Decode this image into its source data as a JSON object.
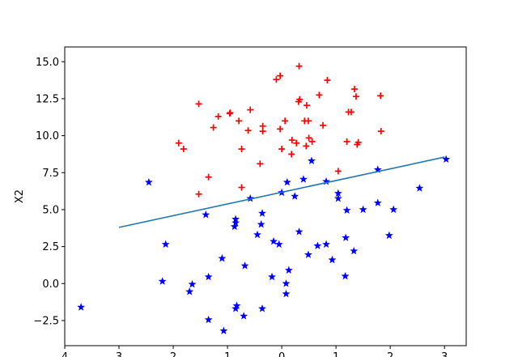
{
  "chart_data": {
    "type": "scatter",
    "title": "",
    "xlabel": "",
    "ylabel": "X2",
    "xlim": [
      -4.0,
      3.4
    ],
    "ylim": [
      -4.2,
      16.0
    ],
    "xticks": [
      -4,
      -3,
      -2,
      -1,
      0,
      1,
      2,
      3
    ],
    "xtick_labels": [
      "4",
      "3",
      "2",
      "1",
      "0",
      "1",
      "2",
      "3"
    ],
    "yticks": [
      -2.5,
      0.0,
      2.5,
      5.0,
      7.5,
      10.0,
      12.5,
      15.0
    ],
    "ytick_labels": [
      "−2.5",
      "0.0",
      "2.5",
      "5.0",
      "7.5",
      "10.0",
      "12.5",
      "15.0"
    ],
    "grid": false,
    "colors": {
      "red_series": "#ff0000",
      "blue_series": "#0000ff",
      "line": "#1f77b4",
      "axes": "#000000"
    },
    "series": [
      {
        "marker": "plus",
        "color": "#ff0000",
        "points": [
          [
            0.32,
            14.7
          ],
          [
            -0.1,
            13.8
          ],
          [
            -0.03,
            14.05
          ],
          [
            0.84,
            13.75
          ],
          [
            1.34,
            13.15
          ],
          [
            1.82,
            12.7
          ],
          [
            1.37,
            12.65
          ],
          [
            0.69,
            12.75
          ],
          [
            0.33,
            12.45
          ],
          [
            0.31,
            12.3
          ],
          [
            -1.53,
            12.15
          ],
          [
            0.46,
            12.05
          ],
          [
            -1.17,
            11.3
          ],
          [
            -0.95,
            11.55
          ],
          [
            -0.96,
            11.5
          ],
          [
            -0.58,
            11.75
          ],
          [
            1.23,
            11.6
          ],
          [
            1.28,
            11.6
          ],
          [
            -0.79,
            11.0
          ],
          [
            0.06,
            11.0
          ],
          [
            0.42,
            11.0
          ],
          [
            0.49,
            11.0
          ],
          [
            -0.35,
            10.65
          ],
          [
            0.76,
            10.7
          ],
          [
            -1.26,
            10.55
          ],
          [
            -0.62,
            10.35
          ],
          [
            -0.35,
            10.3
          ],
          [
            -0.03,
            10.45
          ],
          [
            1.83,
            10.3
          ],
          [
            0.5,
            9.85
          ],
          [
            0.56,
            9.6
          ],
          [
            0.19,
            9.7
          ],
          [
            0.27,
            9.5
          ],
          [
            1.2,
            9.6
          ],
          [
            1.41,
            9.55
          ],
          [
            1.39,
            9.4
          ],
          [
            -1.9,
            9.5
          ],
          [
            -1.81,
            9.1
          ],
          [
            -0.74,
            9.1
          ],
          [
            0.0,
            9.1
          ],
          [
            0.45,
            9.3
          ],
          [
            0.18,
            8.75
          ],
          [
            -0.4,
            8.1
          ],
          [
            -1.35,
            7.2
          ],
          [
            1.04,
            7.6
          ],
          [
            -1.53,
            6.05
          ],
          [
            -0.74,
            6.5
          ]
        ]
      },
      {
        "marker": "star",
        "color": "#0000ff",
        "points": [
          [
            3.03,
            8.4
          ],
          [
            -2.45,
            6.85
          ],
          [
            0.55,
            8.3
          ],
          [
            1.77,
            7.7
          ],
          [
            0.82,
            6.9
          ],
          [
            0.4,
            7.05
          ],
          [
            0.1,
            6.85
          ],
          [
            1.04,
            6.1
          ],
          [
            1.04,
            5.75
          ],
          [
            0.0,
            6.15
          ],
          [
            -0.58,
            5.75
          ],
          [
            0.24,
            5.9
          ],
          [
            1.77,
            5.45
          ],
          [
            1.5,
            5.0
          ],
          [
            1.2,
            4.95
          ],
          [
            2.06,
            5.0
          ],
          [
            2.54,
            6.45
          ],
          [
            -1.4,
            4.65
          ],
          [
            -0.36,
            4.75
          ],
          [
            -0.85,
            4.35
          ],
          [
            -0.85,
            4.1
          ],
          [
            -0.87,
            3.85
          ],
          [
            -0.38,
            4.0
          ],
          [
            0.32,
            3.5
          ],
          [
            -0.45,
            3.3
          ],
          [
            -0.15,
            2.85
          ],
          [
            -0.05,
            2.65
          ],
          [
            0.66,
            2.55
          ],
          [
            0.82,
            2.65
          ],
          [
            1.18,
            3.1
          ],
          [
            1.98,
            3.25
          ],
          [
            -2.14,
            2.65
          ],
          [
            0.49,
            1.95
          ],
          [
            0.93,
            1.6
          ],
          [
            1.33,
            2.2
          ],
          [
            -1.1,
            1.7
          ],
          [
            -0.68,
            1.2
          ],
          [
            0.13,
            0.9
          ],
          [
            -0.18,
            0.45
          ],
          [
            1.17,
            0.5
          ],
          [
            -1.35,
            0.45
          ],
          [
            -2.2,
            0.15
          ],
          [
            -1.65,
            -0.05
          ],
          [
            -1.7,
            -0.55
          ],
          [
            0.08,
            0.0
          ],
          [
            0.08,
            -0.7
          ],
          [
            -3.7,
            -1.6
          ],
          [
            -0.83,
            -1.5
          ],
          [
            -0.85,
            -1.7
          ],
          [
            -0.36,
            -1.7
          ],
          [
            -0.7,
            -2.2
          ],
          [
            -1.35,
            -2.45
          ],
          [
            -1.07,
            -3.2
          ]
        ]
      }
    ],
    "line": {
      "x": [
        -3.0,
        3.0
      ],
      "y": [
        3.8,
        8.55
      ]
    }
  }
}
